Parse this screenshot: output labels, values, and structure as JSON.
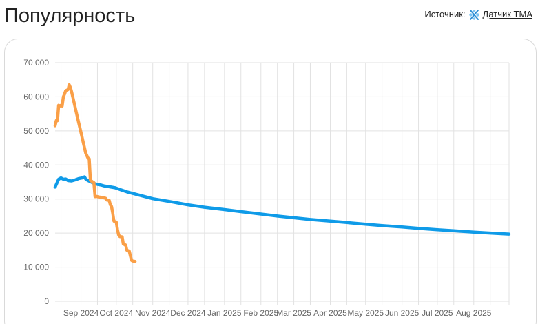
{
  "page": {
    "title": "Популярность"
  },
  "source": {
    "label": "Источник:",
    "link_text": "Датчик ТМА",
    "icon": "tma-sensor-icon"
  },
  "chart_data": {
    "type": "line",
    "title": "",
    "xlabel": "",
    "ylabel": "",
    "ylim": [
      0,
      70000
    ],
    "y_ticks": [
      0,
      10000,
      20000,
      30000,
      40000,
      50000,
      60000,
      70000
    ],
    "y_tick_labels": [
      "0",
      "10 000",
      "20 000",
      "30 000",
      "40 000",
      "50 000",
      "60 000",
      "70 000"
    ],
    "x_range": [
      "2024-08-10",
      "2025-08-31"
    ],
    "x_ticks": [
      "2024-09-01",
      "2024-10-01",
      "2024-11-01",
      "2024-12-01",
      "2025-01-01",
      "2025-02-01",
      "2025-03-01",
      "2025-04-01",
      "2025-05-01",
      "2025-06-01",
      "2025-07-01",
      "2025-08-01"
    ],
    "x_tick_labels": [
      "Sep 2024",
      "Oct 2024",
      "Nov 2024",
      "Dec 2024",
      "Jan 2025",
      "Feb 2025",
      "Mar 2025",
      "Apr 2025",
      "May 2025",
      "Jun 2025",
      "Jul 2025",
      "Aug 2025"
    ],
    "grid": true,
    "legend": "none",
    "series": [
      {
        "color": "#0f9be8",
        "points": [
          [
            "2024-08-10",
            33500
          ],
          [
            "2024-08-13",
            35800
          ],
          [
            "2024-08-15",
            36200
          ],
          [
            "2024-08-17",
            35800
          ],
          [
            "2024-08-19",
            35900
          ],
          [
            "2024-08-21",
            35400
          ],
          [
            "2024-08-24",
            35300
          ],
          [
            "2024-08-27",
            35600
          ],
          [
            "2024-08-30",
            36000
          ],
          [
            "2024-09-02",
            36200
          ],
          [
            "2024-09-04",
            36500
          ],
          [
            "2024-09-05",
            35900
          ],
          [
            "2024-09-07",
            35400
          ],
          [
            "2024-09-09",
            35100
          ],
          [
            "2024-09-12",
            34600
          ],
          [
            "2024-09-15",
            34300
          ],
          [
            "2024-09-18",
            34100
          ],
          [
            "2024-09-21",
            33800
          ],
          [
            "2024-09-25",
            33600
          ],
          [
            "2024-09-30",
            33300
          ],
          [
            "2024-10-05",
            32700
          ],
          [
            "2024-10-10",
            32100
          ],
          [
            "2024-10-20",
            31200
          ],
          [
            "2024-11-01",
            30100
          ],
          [
            "2024-11-15",
            29300
          ],
          [
            "2024-12-01",
            28300
          ],
          [
            "2024-12-15",
            27600
          ],
          [
            "2025-01-01",
            26900
          ],
          [
            "2025-01-15",
            26300
          ],
          [
            "2025-02-01",
            25600
          ],
          [
            "2025-02-15",
            25000
          ],
          [
            "2025-03-01",
            24500
          ],
          [
            "2025-03-15",
            24000
          ],
          [
            "2025-04-01",
            23500
          ],
          [
            "2025-04-15",
            23100
          ],
          [
            "2025-05-01",
            22600
          ],
          [
            "2025-05-15",
            22200
          ],
          [
            "2025-06-01",
            21800
          ],
          [
            "2025-06-15",
            21400
          ],
          [
            "2025-07-01",
            21000
          ],
          [
            "2025-07-15",
            20700
          ],
          [
            "2025-08-01",
            20300
          ],
          [
            "2025-08-15",
            20000
          ],
          [
            "2025-08-31",
            19700
          ]
        ]
      },
      {
        "color": "#fa9f47",
        "points": [
          [
            "2024-08-10",
            51500
          ],
          [
            "2024-08-11",
            53000
          ],
          [
            "2024-08-12",
            53000
          ],
          [
            "2024-08-13",
            57500
          ],
          [
            "2024-08-14",
            57300
          ],
          [
            "2024-08-15",
            57500
          ],
          [
            "2024-08-16",
            57300
          ],
          [
            "2024-08-17",
            60000
          ],
          [
            "2024-08-18",
            60800
          ],
          [
            "2024-08-19",
            61800
          ],
          [
            "2024-08-21",
            62100
          ],
          [
            "2024-08-22",
            63500
          ],
          [
            "2024-08-23",
            62700
          ],
          [
            "2024-08-24",
            61500
          ],
          [
            "2024-08-26",
            58500
          ],
          [
            "2024-08-28",
            55500
          ],
          [
            "2024-08-30",
            52500
          ],
          [
            "2024-09-01",
            49500
          ],
          [
            "2024-09-03",
            46500
          ],
          [
            "2024-09-05",
            43500
          ],
          [
            "2024-09-07",
            42000
          ],
          [
            "2024-09-08",
            41800
          ],
          [
            "2024-09-09",
            35500
          ],
          [
            "2024-09-11",
            35000
          ],
          [
            "2024-09-12",
            34800
          ],
          [
            "2024-09-13",
            30700
          ],
          [
            "2024-09-14",
            30800
          ],
          [
            "2024-09-16",
            30600
          ],
          [
            "2024-09-18",
            30500
          ],
          [
            "2024-09-20",
            30400
          ],
          [
            "2024-09-22",
            30200
          ],
          [
            "2024-09-23",
            29700
          ],
          [
            "2024-09-25",
            29600
          ],
          [
            "2024-09-26",
            28300
          ],
          [
            "2024-09-27",
            27800
          ],
          [
            "2024-09-28",
            25800
          ],
          [
            "2024-09-29",
            23500
          ],
          [
            "2024-10-01",
            23200
          ],
          [
            "2024-10-02",
            21000
          ],
          [
            "2024-10-03",
            19500
          ],
          [
            "2024-10-04",
            19000
          ],
          [
            "2024-10-06",
            18900
          ],
          [
            "2024-10-07",
            16800
          ],
          [
            "2024-10-09",
            16500
          ],
          [
            "2024-10-10",
            15000
          ],
          [
            "2024-10-12",
            14700
          ],
          [
            "2024-10-13",
            13300
          ],
          [
            "2024-10-14",
            12000
          ],
          [
            "2024-10-15",
            11800
          ],
          [
            "2024-10-17",
            11700
          ]
        ]
      }
    ]
  }
}
